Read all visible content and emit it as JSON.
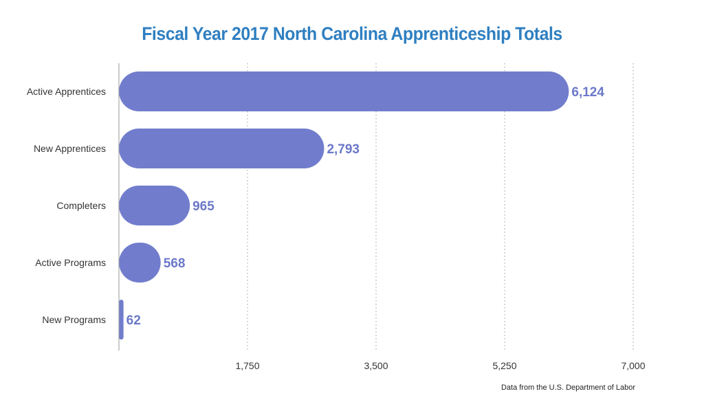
{
  "chart_data": {
    "type": "bar",
    "orientation": "horizontal",
    "title": "Fiscal Year 2017 North Carolina Apprenticeship Totals",
    "categories": [
      "Active Apprentices",
      "New Apprentices",
      "Completers",
      "Active Programs",
      "New Programs"
    ],
    "values": [
      6124,
      2793,
      965,
      568,
      62
    ],
    "value_labels": [
      "6,124",
      "2,793",
      "965",
      "568",
      "62"
    ],
    "xlim": [
      0,
      7000
    ],
    "ticks": [
      1750,
      3500,
      5250,
      7000
    ],
    "tick_labels": [
      "1,750",
      "3,500",
      "5,250",
      "7,000"
    ],
    "grid": "dotted-vertical",
    "xlabel": "",
    "ylabel": "",
    "bar_color": "#717dcc",
    "label_color": "#6b78c9",
    "title_color": "#2f7fc1"
  },
  "footer": {
    "source": "Data from the U.S. Department of Labor"
  }
}
